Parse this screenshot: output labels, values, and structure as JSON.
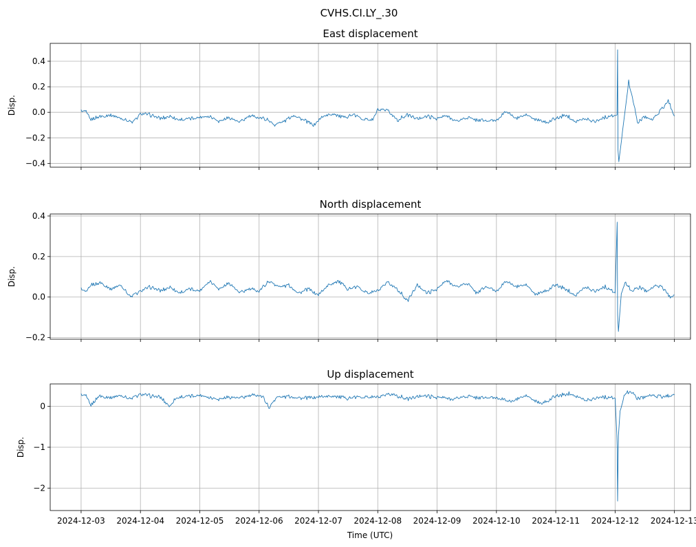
{
  "figure": {
    "suptitle": "CVHS.CI.LY_.30",
    "shared_xlabel": "Time (UTC)",
    "x_tick_labels": [
      "2024-12-03",
      "2024-12-04",
      "2024-12-05",
      "2024-12-06",
      "2024-12-07",
      "2024-12-08",
      "2024-12-09",
      "2024-12-10",
      "2024-12-11",
      "2024-12-12",
      "2024-12-13"
    ]
  },
  "colors": {
    "line": "#1f77b4",
    "grid": "#b0b0b0",
    "axes": "#000000"
  },
  "chart_data": [
    {
      "type": "line",
      "title": "East displacement",
      "ylabel": "Disp.",
      "xlabel": "",
      "xlim": [
        "2024-12-02T11:30",
        "2024-12-13T06:30"
      ],
      "ylim": [
        -0.43,
        0.54
      ],
      "yticks": [
        -0.4,
        -0.2,
        0.0,
        0.2,
        0.4
      ],
      "ytick_labels": [
        "−0.4",
        "−0.2",
        "0.0",
        "0.2",
        "0.4"
      ],
      "grid": true,
      "show_xtick_labels": false,
      "series": [
        {
          "values_sampled": [
            [
              "2024-12-03T00:00",
              0.01
            ],
            [
              "2024-12-03T02:00",
              0.0
            ],
            [
              "2024-12-03T04:00",
              -0.06
            ],
            [
              "2024-12-03T06:00",
              -0.04
            ],
            [
              "2024-12-03T09:00",
              -0.03
            ],
            [
              "2024-12-03T12:00",
              -0.02
            ],
            [
              "2024-12-03T15:00",
              -0.04
            ],
            [
              "2024-12-03T18:00",
              -0.06
            ],
            [
              "2024-12-03T21:00",
              -0.08
            ],
            [
              "2024-12-04T00:00",
              -0.01
            ],
            [
              "2024-12-04T04:00",
              -0.02
            ],
            [
              "2024-12-04T08:00",
              -0.05
            ],
            [
              "2024-12-04T12:00",
              -0.03
            ],
            [
              "2024-12-04T16:00",
              -0.06
            ],
            [
              "2024-12-04T20:00",
              -0.05
            ],
            [
              "2024-12-05T00:00",
              -0.04
            ],
            [
              "2024-12-05T04:00",
              -0.03
            ],
            [
              "2024-12-05T08:00",
              -0.07
            ],
            [
              "2024-12-05T12:00",
              -0.04
            ],
            [
              "2024-12-05T16:00",
              -0.08
            ],
            [
              "2024-12-05T20:00",
              -0.03
            ],
            [
              "2024-12-06T00:00",
              -0.04
            ],
            [
              "2024-12-06T04:00",
              -0.06
            ],
            [
              "2024-12-06T06:00",
              -0.1
            ],
            [
              "2024-12-06T10:00",
              -0.07
            ],
            [
              "2024-12-06T14:00",
              -0.02
            ],
            [
              "2024-12-06T18:00",
              -0.06
            ],
            [
              "2024-12-06T22:00",
              -0.1
            ],
            [
              "2024-12-07T02:00",
              -0.03
            ],
            [
              "2024-12-07T06:00",
              -0.01
            ],
            [
              "2024-12-07T10:00",
              -0.04
            ],
            [
              "2024-12-07T14:00",
              -0.02
            ],
            [
              "2024-12-07T18:00",
              -0.05
            ],
            [
              "2024-12-07T22:00",
              -0.06
            ],
            [
              "2024-12-08T00:00",
              0.02
            ],
            [
              "2024-12-08T04:00",
              0.01
            ],
            [
              "2024-12-08T08:00",
              -0.06
            ],
            [
              "2024-12-08T12:00",
              -0.02
            ],
            [
              "2024-12-08T16:00",
              -0.05
            ],
            [
              "2024-12-08T20:00",
              -0.03
            ],
            [
              "2024-12-09T00:00",
              -0.05
            ],
            [
              "2024-12-09T04:00",
              -0.03
            ],
            [
              "2024-12-09T08:00",
              -0.07
            ],
            [
              "2024-12-09T12:00",
              -0.04
            ],
            [
              "2024-12-09T16:00",
              -0.06
            ],
            [
              "2024-12-09T20:00",
              -0.07
            ],
            [
              "2024-12-10T00:00",
              -0.06
            ],
            [
              "2024-12-10T04:00",
              0.01
            ],
            [
              "2024-12-10T08:00",
              -0.05
            ],
            [
              "2024-12-10T12:00",
              -0.02
            ],
            [
              "2024-12-10T16:00",
              -0.06
            ],
            [
              "2024-12-10T20:00",
              -0.08
            ],
            [
              "2024-12-11T00:00",
              -0.05
            ],
            [
              "2024-12-11T04:00",
              -0.02
            ],
            [
              "2024-12-11T08:00",
              -0.07
            ],
            [
              "2024-12-11T12:00",
              -0.05
            ],
            [
              "2024-12-11T16:00",
              -0.07
            ],
            [
              "2024-12-11T20:00",
              -0.04
            ],
            [
              "2024-12-11T23:00",
              -0.03
            ],
            [
              "2024-12-12T00:45",
              -0.02
            ],
            [
              "2024-12-12T01:00",
              0.49
            ],
            [
              "2024-12-12T01:10",
              -0.3
            ],
            [
              "2024-12-12T01:30",
              -0.38
            ],
            [
              "2024-12-12T03:00",
              -0.15
            ],
            [
              "2024-12-12T05:30",
              0.24
            ],
            [
              "2024-12-12T07:00",
              0.12
            ],
            [
              "2024-12-12T09:00",
              -0.08
            ],
            [
              "2024-12-12T12:00",
              -0.03
            ],
            [
              "2024-12-12T15:00",
              -0.06
            ],
            [
              "2024-12-12T19:00",
              0.03
            ],
            [
              "2024-12-12T21:30",
              0.09
            ],
            [
              "2024-12-13T00:00",
              -0.03
            ]
          ]
        }
      ]
    },
    {
      "type": "line",
      "title": "North displacement",
      "ylabel": "Disp.",
      "xlabel": "",
      "xlim": [
        "2024-12-02T11:30",
        "2024-12-13T06:30"
      ],
      "ylim": [
        -0.208,
        0.41
      ],
      "yticks": [
        -0.2,
        0.0,
        0.2,
        0.4
      ],
      "ytick_labels": [
        "−0.2",
        "0.0",
        "0.2",
        "0.4"
      ],
      "grid": true,
      "show_xtick_labels": false,
      "series": [
        {
          "values_sampled": [
            [
              "2024-12-03T00:00",
              0.04
            ],
            [
              "2024-12-03T02:00",
              0.02
            ],
            [
              "2024-12-03T04:00",
              0.06
            ],
            [
              "2024-12-03T08:00",
              0.07
            ],
            [
              "2024-12-03T12:00",
              0.04
            ],
            [
              "2024-12-03T16:00",
              0.06
            ],
            [
              "2024-12-03T20:00",
              0.0
            ],
            [
              "2024-12-04T00:00",
              0.03
            ],
            [
              "2024-12-04T04:00",
              0.05
            ],
            [
              "2024-12-04T08:00",
              0.03
            ],
            [
              "2024-12-04T12:00",
              0.05
            ],
            [
              "2024-12-04T16:00",
              0.02
            ],
            [
              "2024-12-04T20:00",
              0.04
            ],
            [
              "2024-12-05T00:00",
              0.03
            ],
            [
              "2024-12-05T04:00",
              0.08
            ],
            [
              "2024-12-05T08:00",
              0.04
            ],
            [
              "2024-12-05T12:00",
              0.07
            ],
            [
              "2024-12-05T16:00",
              0.02
            ],
            [
              "2024-12-05T20:00",
              0.04
            ],
            [
              "2024-12-06T00:00",
              0.03
            ],
            [
              "2024-12-06T04:00",
              0.08
            ],
            [
              "2024-12-06T08:00",
              0.05
            ],
            [
              "2024-12-06T12:00",
              0.06
            ],
            [
              "2024-12-06T16:00",
              0.02
            ],
            [
              "2024-12-06T20:00",
              0.04
            ],
            [
              "2024-12-07T00:00",
              0.01
            ],
            [
              "2024-12-07T04:00",
              0.06
            ],
            [
              "2024-12-07T08:00",
              0.08
            ],
            [
              "2024-12-07T12:00",
              0.04
            ],
            [
              "2024-12-07T16:00",
              0.05
            ],
            [
              "2024-12-07T20:00",
              0.02
            ],
            [
              "2024-12-08T00:00",
              0.03
            ],
            [
              "2024-12-08T04:00",
              0.07
            ],
            [
              "2024-12-08T08:00",
              0.04
            ],
            [
              "2024-12-08T12:00",
              -0.02
            ],
            [
              "2024-12-08T16:00",
              0.06
            ],
            [
              "2024-12-08T20:00",
              0.02
            ],
            [
              "2024-12-09T00:00",
              0.04
            ],
            [
              "2024-12-09T04:00",
              0.08
            ],
            [
              "2024-12-09T08:00",
              0.05
            ],
            [
              "2024-12-09T12:00",
              0.07
            ],
            [
              "2024-12-09T16:00",
              0.02
            ],
            [
              "2024-12-09T20:00",
              0.05
            ],
            [
              "2024-12-10T00:00",
              0.03
            ],
            [
              "2024-12-10T04:00",
              0.08
            ],
            [
              "2024-12-10T08:00",
              0.05
            ],
            [
              "2024-12-10T12:00",
              0.06
            ],
            [
              "2024-12-10T16:00",
              0.01
            ],
            [
              "2024-12-10T20:00",
              0.03
            ],
            [
              "2024-12-11T00:00",
              0.06
            ],
            [
              "2024-12-11T04:00",
              0.04
            ],
            [
              "2024-12-11T08:00",
              0.01
            ],
            [
              "2024-12-11T12:00",
              0.05
            ],
            [
              "2024-12-11T16:00",
              0.03
            ],
            [
              "2024-12-11T20:00",
              0.05
            ],
            [
              "2024-12-12T00:00",
              0.02
            ],
            [
              "2024-12-12T00:50",
              0.37
            ],
            [
              "2024-12-12T01:00",
              -0.1
            ],
            [
              "2024-12-12T01:20",
              -0.17
            ],
            [
              "2024-12-12T02:30",
              0.02
            ],
            [
              "2024-12-12T04:00",
              0.07
            ],
            [
              "2024-12-12T07:00",
              0.03
            ],
            [
              "2024-12-12T10:00",
              0.05
            ],
            [
              "2024-12-12T13:00",
              0.03
            ],
            [
              "2024-12-12T17:00",
              0.06
            ],
            [
              "2024-12-12T20:00",
              0.04
            ],
            [
              "2024-12-12T22:00",
              0.0
            ],
            [
              "2024-12-13T00:00",
              0.01
            ]
          ]
        }
      ]
    },
    {
      "type": "line",
      "title": "Up displacement",
      "ylabel": "Disp.",
      "xlabel": "Time (UTC)",
      "xlim": [
        "2024-12-02T11:30",
        "2024-12-13T06:30"
      ],
      "ylim": [
        -2.55,
        0.55
      ],
      "yticks": [
        -2,
        -1,
        0
      ],
      "ytick_labels": [
        "−2",
        "−1",
        "0"
      ],
      "grid": true,
      "show_xtick_labels": true,
      "series": [
        {
          "values_sampled": [
            [
              "2024-12-03T00:00",
              0.28
            ],
            [
              "2024-12-03T02:00",
              0.24
            ],
            [
              "2024-12-03T04:00",
              0.02
            ],
            [
              "2024-12-03T07:00",
              0.25
            ],
            [
              "2024-12-03T12:00",
              0.22
            ],
            [
              "2024-12-03T16:00",
              0.27
            ],
            [
              "2024-12-03T20:00",
              0.18
            ],
            [
              "2024-12-04T00:00",
              0.3
            ],
            [
              "2024-12-04T04:00",
              0.26
            ],
            [
              "2024-12-04T08:00",
              0.22
            ],
            [
              "2024-12-04T12:00",
              0.0
            ],
            [
              "2024-12-04T14:00",
              0.2
            ],
            [
              "2024-12-04T18:00",
              0.24
            ],
            [
              "2024-12-05T00:00",
              0.27
            ],
            [
              "2024-12-05T04:00",
              0.22
            ],
            [
              "2024-12-05T08:00",
              0.18
            ],
            [
              "2024-12-05T12:00",
              0.23
            ],
            [
              "2024-12-05T16:00",
              0.2
            ],
            [
              "2024-12-05T20:00",
              0.26
            ],
            [
              "2024-12-06T00:00",
              0.28
            ],
            [
              "2024-12-06T02:00",
              0.2
            ],
            [
              "2024-12-06T04:00",
              -0.03
            ],
            [
              "2024-12-06T07:00",
              0.22
            ],
            [
              "2024-12-06T12:00",
              0.25
            ],
            [
              "2024-12-06T18:00",
              0.2
            ],
            [
              "2024-12-07T00:00",
              0.23
            ],
            [
              "2024-12-07T06:00",
              0.26
            ],
            [
              "2024-12-07T12:00",
              0.2
            ],
            [
              "2024-12-07T18:00",
              0.24
            ],
            [
              "2024-12-08T00:00",
              0.22
            ],
            [
              "2024-12-08T06:00",
              0.3
            ],
            [
              "2024-12-08T12:00",
              0.18
            ],
            [
              "2024-12-08T18:00",
              0.27
            ],
            [
              "2024-12-09T00:00",
              0.22
            ],
            [
              "2024-12-09T06:00",
              0.18
            ],
            [
              "2024-12-09T12:00",
              0.25
            ],
            [
              "2024-12-09T18:00",
              0.2
            ],
            [
              "2024-12-10T00:00",
              0.22
            ],
            [
              "2024-12-10T06:00",
              0.12
            ],
            [
              "2024-12-10T12:00",
              0.26
            ],
            [
              "2024-12-10T18:00",
              0.05
            ],
            [
              "2024-12-11T00:00",
              0.25
            ],
            [
              "2024-12-11T06:00",
              0.32
            ],
            [
              "2024-12-11T12:00",
              0.15
            ],
            [
              "2024-12-11T18:00",
              0.23
            ],
            [
              "2024-12-12T00:00",
              0.2
            ],
            [
              "2024-12-12T00:40",
              -0.65
            ],
            [
              "2024-12-12T00:50",
              -1.0
            ],
            [
              "2024-12-12T01:00",
              -2.32
            ],
            [
              "2024-12-12T01:20",
              -0.7
            ],
            [
              "2024-12-12T02:00",
              -0.1
            ],
            [
              "2024-12-12T04:00",
              0.3
            ],
            [
              "2024-12-12T06:00",
              0.38
            ],
            [
              "2024-12-12T09:00",
              0.2
            ],
            [
              "2024-12-12T14:00",
              0.27
            ],
            [
              "2024-12-12T20:00",
              0.24
            ],
            [
              "2024-12-13T00:00",
              0.28
            ]
          ]
        }
      ]
    }
  ]
}
